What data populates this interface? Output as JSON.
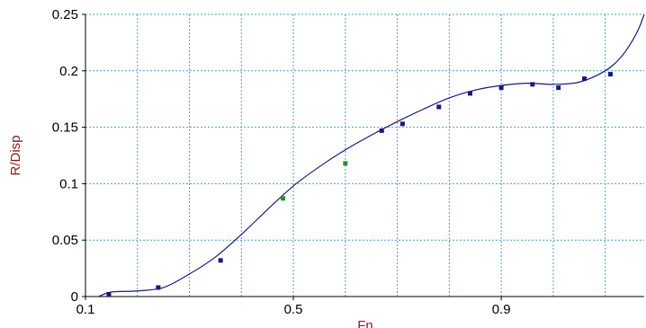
{
  "chart_data": {
    "type": "scatter",
    "xlabel": "Fn",
    "ylabel": "R/Disp",
    "xlim": [
      0.1,
      1.175
    ],
    "ylim": [
      0,
      0.25
    ],
    "x_ticks": [
      {
        "value": 0.1,
        "label": "0.1"
      },
      {
        "value": 0.5,
        "label": "0.5"
      },
      {
        "value": 0.9,
        "label": "0.9"
      }
    ],
    "x_grid_values": [
      0.2,
      0.3,
      0.4,
      0.6,
      0.7,
      0.8,
      1.0,
      1.1
    ],
    "y_ticks": [
      {
        "value": 0,
        "label": "0"
      },
      {
        "value": 0.05,
        "label": "0.05"
      },
      {
        "value": 0.1,
        "label": "0.1"
      },
      {
        "value": 0.15,
        "label": "0.15"
      },
      {
        "value": 0.2,
        "label": "0.2"
      },
      {
        "value": 0.25,
        "label": "0.25"
      }
    ],
    "grid": true,
    "series": [
      {
        "kind": "points",
        "color": "#1a1a7a",
        "x": [
          0.145,
          0.24,
          0.36,
          0.67,
          0.71,
          0.78,
          0.84,
          0.9,
          0.96,
          1.01,
          1.06,
          1.11
        ],
        "y": [
          0.002,
          0.008,
          0.032,
          0.147,
          0.153,
          0.168,
          0.18,
          0.185,
          0.188,
          0.185,
          0.193,
          0.197
        ]
      },
      {
        "kind": "points",
        "color": "#1f9a1f",
        "x": [
          0.48,
          0.6
        ],
        "y": [
          0.087,
          0.118
        ]
      },
      {
        "kind": "curve",
        "color": "#1a1a7a",
        "x": [
          0.125,
          0.15,
          0.2,
          0.25,
          0.3,
          0.35,
          0.4,
          0.45,
          0.5,
          0.55,
          0.6,
          0.65,
          0.7,
          0.75,
          0.8,
          0.85,
          0.9,
          0.95,
          1.0,
          1.05,
          1.1,
          1.13,
          1.15,
          1.165,
          1.175
        ],
        "y": [
          0.0,
          0.004,
          0.005,
          0.008,
          0.02,
          0.035,
          0.055,
          0.077,
          0.098,
          0.115,
          0.13,
          0.143,
          0.155,
          0.166,
          0.176,
          0.183,
          0.187,
          0.189,
          0.188,
          0.19,
          0.2,
          0.212,
          0.225,
          0.238,
          0.25
        ]
      }
    ]
  }
}
